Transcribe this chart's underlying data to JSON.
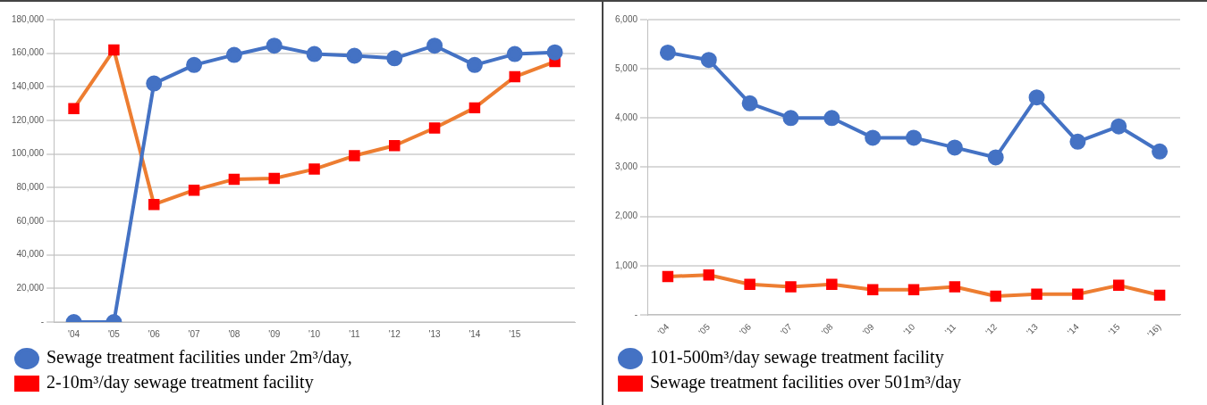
{
  "chart_data": [
    {
      "type": "line",
      "categories": [
        "'04",
        "'05",
        "'06",
        "'07",
        "'08",
        "'09",
        "'10",
        "'11",
        "'12",
        "'13",
        "'14",
        "'15",
        null
      ],
      "series": [
        {
          "name": "Sewage treatment facilities under 2m³/day,",
          "color": "#4472c4",
          "marker": "circle",
          "values": [
            0,
            0,
            142000,
            153000,
            159000,
            164500,
            159500,
            158500,
            157000,
            164500,
            153000,
            159500,
            160500
          ]
        },
        {
          "name": "2-10m³/day sewage treatment facility",
          "color": "#ed7d31",
          "marker": "square",
          "colors": [
            "#ff0000",
            "#ff0000",
            "#ff0000",
            "#ff0000",
            "#ff0000",
            "#ff0000",
            "#ff0000",
            "#ff0000",
            "#ff0000",
            "#ff0000",
            "#ff0000",
            "#ff0000",
            "#ff0000"
          ],
          "values": [
            127000,
            162000,
            70000,
            78500,
            85000,
            85500,
            91000,
            99000,
            105000,
            115500,
            127500,
            146000,
            155000
          ]
        }
      ],
      "ylim": [
        0,
        180000
      ],
      "yticks": [
        {
          "value": 0,
          "label": "-"
        },
        {
          "value": 20000,
          "label": "20,000"
        },
        {
          "value": 40000,
          "label": "40,000"
        },
        {
          "value": 60000,
          "label": "60,000"
        },
        {
          "value": 80000,
          "label": "80,000"
        },
        {
          "value": 100000,
          "label": "100,000"
        },
        {
          "value": 120000,
          "label": "120,000"
        },
        {
          "value": 140000,
          "label": "140,000"
        },
        {
          "value": 160000,
          "label": "160,000"
        },
        {
          "value": 180000,
          "label": "180,000"
        }
      ],
      "grid": "y",
      "legend": "bottom"
    },
    {
      "type": "line",
      "categories": [
        "'04",
        "'05",
        "'06",
        "'07",
        "'08",
        "'09",
        "'10",
        "'11",
        "'12",
        "'13",
        "'14",
        "'15",
        "'16)"
      ],
      "series": [
        {
          "name": "101-500m³/day sewage treatment facility",
          "color": "#4472c4",
          "marker": "circle",
          "values": [
            5330,
            5180,
            4300,
            4000,
            4000,
            3600,
            3600,
            3400,
            3200,
            4420,
            3520,
            3830,
            3320
          ]
        },
        {
          "name": "Sewage treatment facilities over 501m³/day",
          "color": "#ed7d31",
          "marker": "square",
          "colors": [
            "#ff0000",
            "#ff0000",
            "#ff0000",
            "#ff0000",
            "#ff0000",
            "#ff0000",
            "#ff0000",
            "#ff0000",
            "#ff0000",
            "#ff0000",
            "#ff0000",
            "#ff0000",
            "#ff0000"
          ],
          "values": [
            780,
            810,
            620,
            570,
            620,
            510,
            510,
            570,
            380,
            420,
            420,
            600,
            400
          ]
        }
      ],
      "ylim": [
        0,
        6000
      ],
      "yticks": [
        {
          "value": 0,
          "label": "-"
        },
        {
          "value": 1000,
          "label": "1,000"
        },
        {
          "value": 2000,
          "label": "2,000"
        },
        {
          "value": 3000,
          "label": "3,000"
        },
        {
          "value": 4000,
          "label": "4,000"
        },
        {
          "value": 5000,
          "label": "5,000"
        },
        {
          "value": 6000,
          "label": "6,000"
        }
      ],
      "grid": "y",
      "legend": "bottom"
    }
  ]
}
